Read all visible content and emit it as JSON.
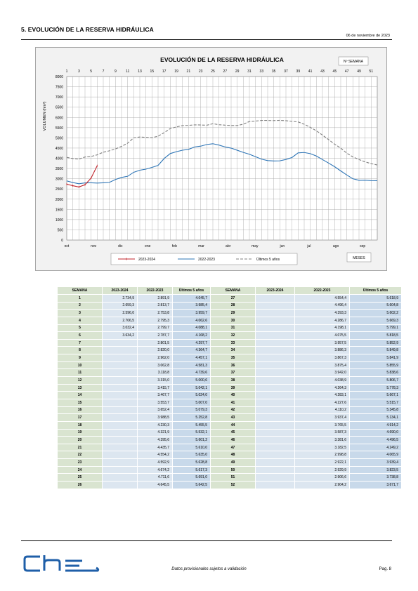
{
  "header": {
    "section_title": "5. EVOLUCIÓN DE LA RESERVA HIDRÁULICA",
    "date": "06  de noviembre de 2023"
  },
  "chart_data": {
    "type": "line",
    "title": "EVOLUCIÓN DE LA RESERVA HIDRÁULICA",
    "week_axis_label": "Nº SEMANA",
    "ylabel": "VOLUMEN (hm³)",
    "xlabel": "MESES",
    "ylim": [
      0,
      8000
    ],
    "y_ticks": [
      0,
      500,
      1000,
      1500,
      2000,
      2500,
      3000,
      3500,
      4000,
      4500,
      5000,
      5500,
      6000,
      6500,
      7000,
      7500,
      8000
    ],
    "week_ticks": [
      1,
      3,
      5,
      7,
      9,
      11,
      13,
      15,
      17,
      19,
      21,
      23,
      25,
      27,
      29,
      31,
      33,
      35,
      37,
      39,
      41,
      43,
      45,
      47,
      49,
      51
    ],
    "month_labels": [
      "oct",
      "nov",
      "dic",
      "ene",
      "feb",
      "mar",
      "abr",
      "may",
      "jun",
      "jul",
      "ago",
      "sep"
    ],
    "grid": true,
    "legend_placement": "bottom",
    "weeks": [
      1,
      2,
      3,
      4,
      5,
      6,
      7,
      8,
      9,
      10,
      11,
      12,
      13,
      14,
      15,
      16,
      17,
      18,
      19,
      20,
      21,
      22,
      23,
      24,
      25,
      26,
      27,
      28,
      29,
      30,
      31,
      32,
      33,
      34,
      35,
      36,
      37,
      38,
      39,
      40,
      41,
      42,
      43,
      44,
      45,
      46,
      47,
      48,
      49,
      50,
      51,
      52
    ],
    "series": [
      {
        "name": "2023-2024",
        "color": "#c0262d",
        "dash": "solid",
        "values": [
          2734.9,
          2659.3,
          2596.0,
          2706.5,
          3032.4,
          3634.2
        ]
      },
      {
        "name": "2022-2023",
        "color": "#2e75b6",
        "dash": "solid",
        "values": [
          2891.9,
          2813.7,
          2753.8,
          2795.3,
          2799.7,
          2787.7,
          2801.5,
          2820.0,
          2962.0,
          3062.8,
          3118.8,
          3315.0,
          3415.7,
          3467.7,
          3553.7,
          3652.4,
          3988.5,
          4230.3,
          4321.9,
          4395.6,
          4435.7,
          4554.2,
          4592.9,
          4674.2,
          4711.6,
          4645.5,
          4554.4,
          4496.4,
          4393.3,
          4286.7,
          4198.1,
          4075.5,
          3957.5,
          3886.3,
          3867.3,
          3875.4,
          3942.0,
          4038.9,
          4264.3,
          4283.1,
          4227.6,
          4110.2,
          3937.4,
          3765.5,
          3587.3,
          3381.6,
          3182.5,
          2998.8,
          2922.1,
          2929.9,
          2906.6,
          2904.2
        ]
      },
      {
        "name": "Últimos 5 años",
        "color": "#808080",
        "dash": "dashed",
        "values": [
          4045.7,
          3985.4,
          3959.7,
          4062.6,
          4088.1,
          4168.2,
          4297.7,
          4364.7,
          4457.1,
          4581.3,
          4739.6,
          5000.6,
          5042.1,
          5024.0,
          5007.0,
          5079.3,
          5252.8,
          5455.5,
          5532.1,
          5601.2,
          5610.0,
          5635.0,
          5628.8,
          5617.3,
          5691.0,
          5642.5,
          5618.9,
          5604.8,
          5602.2,
          5669.3,
          5799.1,
          5818.5,
          5852.9,
          5849.8,
          5841.9,
          5855.9,
          5838.6,
          5806.7,
          5778.3,
          5667.1,
          5515.7,
          5345.8,
          5134.1,
          4914.2,
          4690.0,
          4496.5,
          4249.2,
          4065.9,
          3939.4,
          3823.5,
          3738.8,
          3671.7
        ]
      }
    ]
  },
  "table": {
    "headers": [
      "SEMANA",
      "2023-2024",
      "2022-2023",
      "Últimos 5 años",
      "SEMANA",
      "2023-2024",
      "2022-2023",
      "Últimos 5 años"
    ],
    "rows": [
      [
        "1",
        "2.734,9",
        "2.891,9",
        "4.045,7",
        "27",
        "",
        "4.554,4",
        "5.618,9"
      ],
      [
        "2",
        "2.659,3",
        "2.813,7",
        "3.985,4",
        "28",
        "",
        "4.496,4",
        "5.604,8"
      ],
      [
        "3",
        "2.596,0",
        "2.753,8",
        "3.959,7",
        "29",
        "",
        "4.393,3",
        "5.602,2"
      ],
      [
        "4",
        "2.706,5",
        "2.795,3",
        "4.062,6",
        "30",
        "",
        "4.286,7",
        "5.669,3"
      ],
      [
        "5",
        "3.032,4",
        "2.799,7",
        "4.088,1",
        "31",
        "",
        "4.198,1",
        "5.799,1"
      ],
      [
        "6",
        "3.634,2",
        "2.787,7",
        "4.168,2",
        "32",
        "",
        "4.075,5",
        "5.818,5"
      ],
      [
        "7",
        "",
        "2.801,5",
        "4.297,7",
        "33",
        "",
        "3.957,5",
        "5.852,9"
      ],
      [
        "8",
        "",
        "2.820,0",
        "4.364,7",
        "34",
        "",
        "3.886,3",
        "5.849,8"
      ],
      [
        "9",
        "",
        "2.962,0",
        "4.457,1",
        "35",
        "",
        "3.867,3",
        "5.841,9"
      ],
      [
        "10",
        "",
        "3.062,8",
        "4.581,3",
        "36",
        "",
        "3.875,4",
        "5.855,9"
      ],
      [
        "11",
        "",
        "3.118,8",
        "4.739,6",
        "37",
        "",
        "3.942,0",
        "5.838,6"
      ],
      [
        "12",
        "",
        "3.315,0",
        "5.000,6",
        "38",
        "",
        "4.038,9",
        "5.806,7"
      ],
      [
        "13",
        "",
        "3.415,7",
        "5.042,1",
        "39",
        "",
        "4.264,3",
        "5.778,3"
      ],
      [
        "14",
        "",
        "3.467,7",
        "5.024,0",
        "40",
        "",
        "4.283,1",
        "5.667,1"
      ],
      [
        "15",
        "",
        "3.553,7",
        "5.007,0",
        "41",
        "",
        "4.227,6",
        "5.515,7"
      ],
      [
        "16",
        "",
        "3.652,4",
        "5.079,3",
        "42",
        "",
        "4.110,2",
        "5.345,8"
      ],
      [
        "17",
        "",
        "3.988,5",
        "5.252,8",
        "43",
        "",
        "3.937,4",
        "5.134,1"
      ],
      [
        "18",
        "",
        "4.230,3",
        "5.455,5",
        "44",
        "",
        "3.765,5",
        "4.914,2"
      ],
      [
        "19",
        "",
        "4.321,9",
        "5.532,1",
        "45",
        "",
        "3.587,3",
        "4.690,0"
      ],
      [
        "20",
        "",
        "4.395,6",
        "5.601,2",
        "46",
        "",
        "3.381,6",
        "4.496,5"
      ],
      [
        "21",
        "",
        "4.435,7",
        "5.610,0",
        "47",
        "",
        "3.182,5",
        "4.249,2"
      ],
      [
        "22",
        "",
        "4.554,2",
        "5.635,0",
        "48",
        "",
        "2.998,8",
        "4.065,9"
      ],
      [
        "23",
        "",
        "4.592,9",
        "5.628,8",
        "49",
        "",
        "2.922,1",
        "3.939,4"
      ],
      [
        "24",
        "",
        "4.674,2",
        "5.617,3",
        "50",
        "",
        "2.929,9",
        "3.823,5"
      ],
      [
        "25",
        "",
        "4.711,6",
        "5.691,0",
        "51",
        "",
        "2.906,6",
        "3.738,8"
      ],
      [
        "26",
        "",
        "4.645,5",
        "5.642,5",
        "52",
        "",
        "2.904,2",
        "3.671,7"
      ]
    ]
  },
  "footer": {
    "logo_text": "che",
    "note": "Datos provisionales sujetos a validación",
    "page": "Pag. 8"
  }
}
